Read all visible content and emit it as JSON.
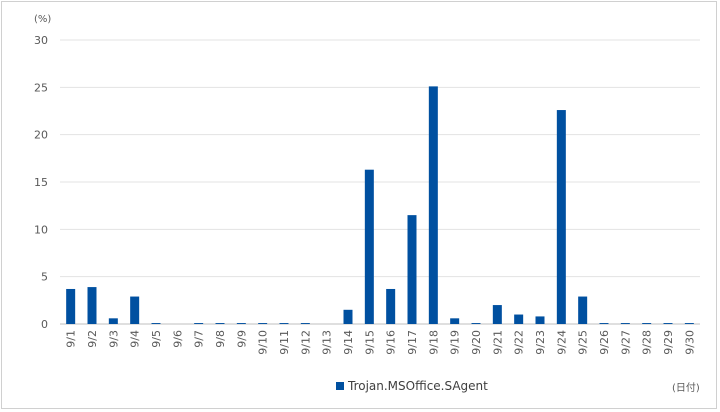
{
  "chart_data": {
    "type": "bar",
    "y_unit": "(%)",
    "x_unit": "(日付)",
    "ylim": [
      0,
      30
    ],
    "yticks": [
      0,
      5,
      10,
      15,
      20,
      25,
      30
    ],
    "grid": true,
    "legend_position": "bottom",
    "categories": [
      "9/1",
      "9/2",
      "9/3",
      "9/4",
      "9/5",
      "9/6",
      "9/7",
      "9/8",
      "9/9",
      "9/10",
      "9/11",
      "9/12",
      "9/13",
      "9/14",
      "9/15",
      "9/16",
      "9/17",
      "9/18",
      "9/19",
      "9/20",
      "9/21",
      "9/22",
      "9/23",
      "9/24",
      "9/25",
      "9/26",
      "9/27",
      "9/28",
      "9/29",
      "9/30"
    ],
    "series": [
      {
        "name": "Trojan.MSOffice.SAgent",
        "color": "#0050a0",
        "values": [
          3.7,
          3.9,
          0.6,
          2.9,
          0.1,
          0.0,
          0.1,
          0.1,
          0.1,
          0.1,
          0.1,
          0.1,
          0.0,
          1.5,
          16.3,
          3.7,
          11.5,
          25.1,
          0.6,
          0.1,
          2.0,
          1.0,
          0.8,
          22.6,
          2.9,
          0.1,
          0.1,
          0.1,
          0.1,
          0.1
        ]
      }
    ]
  }
}
